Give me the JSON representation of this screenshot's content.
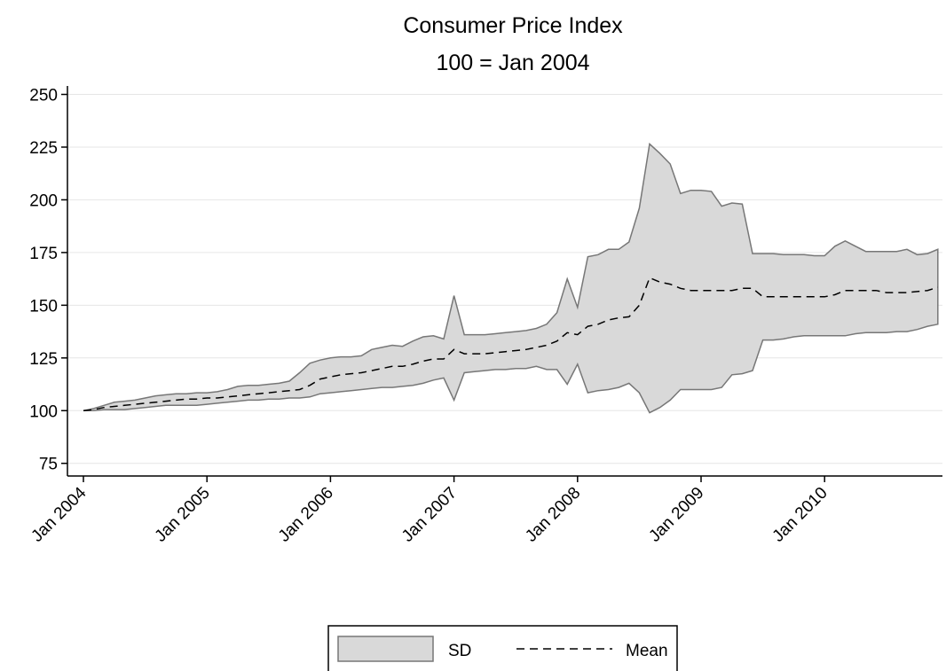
{
  "chart_data": {
    "type": "band-line",
    "title": "Consumer Price Index",
    "subtitle": "100 = Jan 2004",
    "x": [
      "2004-01",
      "2004-02",
      "2004-03",
      "2004-04",
      "2004-05",
      "2004-06",
      "2004-07",
      "2004-08",
      "2004-09",
      "2004-10",
      "2004-11",
      "2004-12",
      "2005-01",
      "2005-02",
      "2005-03",
      "2005-04",
      "2005-05",
      "2005-06",
      "2005-07",
      "2005-08",
      "2005-09",
      "2005-10",
      "2005-11",
      "2005-12",
      "2006-01",
      "2006-02",
      "2006-03",
      "2006-04",
      "2006-05",
      "2006-06",
      "2006-07",
      "2006-08",
      "2006-09",
      "2006-10",
      "2006-11",
      "2006-12",
      "2007-01",
      "2007-02",
      "2007-03",
      "2007-04",
      "2007-05",
      "2007-06",
      "2007-07",
      "2007-08",
      "2007-09",
      "2007-10",
      "2007-11",
      "2007-12",
      "2008-01",
      "2008-02",
      "2008-03",
      "2008-04",
      "2008-05",
      "2008-06",
      "2008-07",
      "2008-08",
      "2008-09",
      "2008-10",
      "2008-11",
      "2008-12",
      "2009-01",
      "2009-02",
      "2009-03",
      "2009-04",
      "2009-05",
      "2009-06",
      "2009-07",
      "2009-08",
      "2009-09",
      "2009-10",
      "2009-11",
      "2009-12",
      "2010-01",
      "2010-02",
      "2010-03",
      "2010-04",
      "2010-05",
      "2010-06",
      "2010-07",
      "2010-08",
      "2010-09",
      "2010-10",
      "2010-11",
      "2010-12"
    ],
    "series": [
      {
        "name": "SD",
        "color": "#d9d9d9",
        "stroke": "#777777",
        "upper": [
          100,
          101,
          102.5,
          104,
          104.5,
          105,
          106,
          107,
          107.5,
          108,
          108,
          108.5,
          108.5,
          109,
          110,
          111.5,
          112,
          112,
          112.5,
          113,
          114,
          118,
          122.5,
          124,
          125,
          125.5,
          125.5,
          126,
          129,
          130,
          131,
          130.5,
          133,
          135,
          135.5,
          134,
          154.5,
          136,
          136,
          136,
          136.5,
          137,
          137.5,
          138,
          139,
          141,
          146.5,
          162.5,
          149,
          173,
          174,
          176.5,
          176.5,
          180,
          196,
          226.5,
          222,
          217,
          203,
          204.5,
          204.5,
          204,
          197,
          198.5,
          198,
          174.5,
          174.5,
          174.5,
          174,
          174,
          174,
          173.5,
          173.5,
          178,
          180.5,
          178,
          175.5,
          175.5,
          175.5,
          175.5,
          176.5,
          174,
          174.5,
          176.5
        ],
        "lower": [
          100,
          100,
          100.5,
          100.5,
          100.5,
          101,
          101.5,
          102,
          102.5,
          102.5,
          102.5,
          102.5,
          103,
          103.5,
          104,
          104.5,
          105,
          105,
          105.5,
          105.5,
          106,
          106,
          106.5,
          108,
          108.5,
          109,
          109.5,
          110,
          110.5,
          111,
          111,
          111.5,
          112,
          113,
          114.5,
          115.5,
          105,
          118,
          118.5,
          119,
          119.5,
          119.5,
          120,
          120,
          121,
          119.5,
          119.5,
          112.5,
          122,
          108.5,
          109.5,
          110,
          111,
          113,
          108.5,
          99,
          101.5,
          105,
          110,
          110,
          110,
          110,
          111,
          117,
          117.5,
          119,
          133.5,
          133.5,
          134,
          135,
          135.5,
          135.5,
          135.5,
          135.5,
          135.5,
          136.5,
          137,
          137,
          137,
          137.5,
          137.5,
          138.5,
          140,
          141
        ]
      },
      {
        "name": "Mean",
        "color": "#000000",
        "dash": true,
        "values": [
          100,
          100.5,
          101.5,
          102,
          102.5,
          103,
          103.5,
          104,
          104.5,
          105,
          105.5,
          105.5,
          106,
          106,
          106.5,
          107,
          107.5,
          108,
          108.5,
          109,
          109.5,
          110,
          112,
          115,
          116,
          117,
          117.5,
          118,
          119,
          120,
          121,
          121,
          122,
          123.5,
          124.5,
          124.5,
          129,
          127,
          127,
          127,
          127.5,
          128,
          128.5,
          129,
          130,
          131,
          133,
          137,
          136,
          140,
          141,
          143,
          144,
          144.5,
          150,
          163,
          161,
          160,
          158,
          157,
          157,
          157,
          157,
          157,
          158,
          158,
          154,
          154,
          154,
          154,
          154,
          154,
          154,
          155,
          157,
          157,
          157,
          157,
          156,
          156,
          156,
          156.5,
          157,
          158.5
        ]
      }
    ],
    "ylim": [
      69,
      254
    ],
    "yticks": [
      75,
      100,
      125,
      150,
      175,
      200,
      225,
      250
    ],
    "xticks": [
      {
        "value": "2004-01",
        "label": "Jan 2004"
      },
      {
        "value": "2005-01",
        "label": "Jan 2005"
      },
      {
        "value": "2006-01",
        "label": "Jan 2006"
      },
      {
        "value": "2007-01",
        "label": "Jan 2007"
      },
      {
        "value": "2008-01",
        "label": "Jan 2008"
      },
      {
        "value": "2009-01",
        "label": "Jan 2009"
      },
      {
        "value": "2010-01",
        "label": "Jan 2010"
      }
    ],
    "grid": true,
    "legend": "bottom"
  }
}
